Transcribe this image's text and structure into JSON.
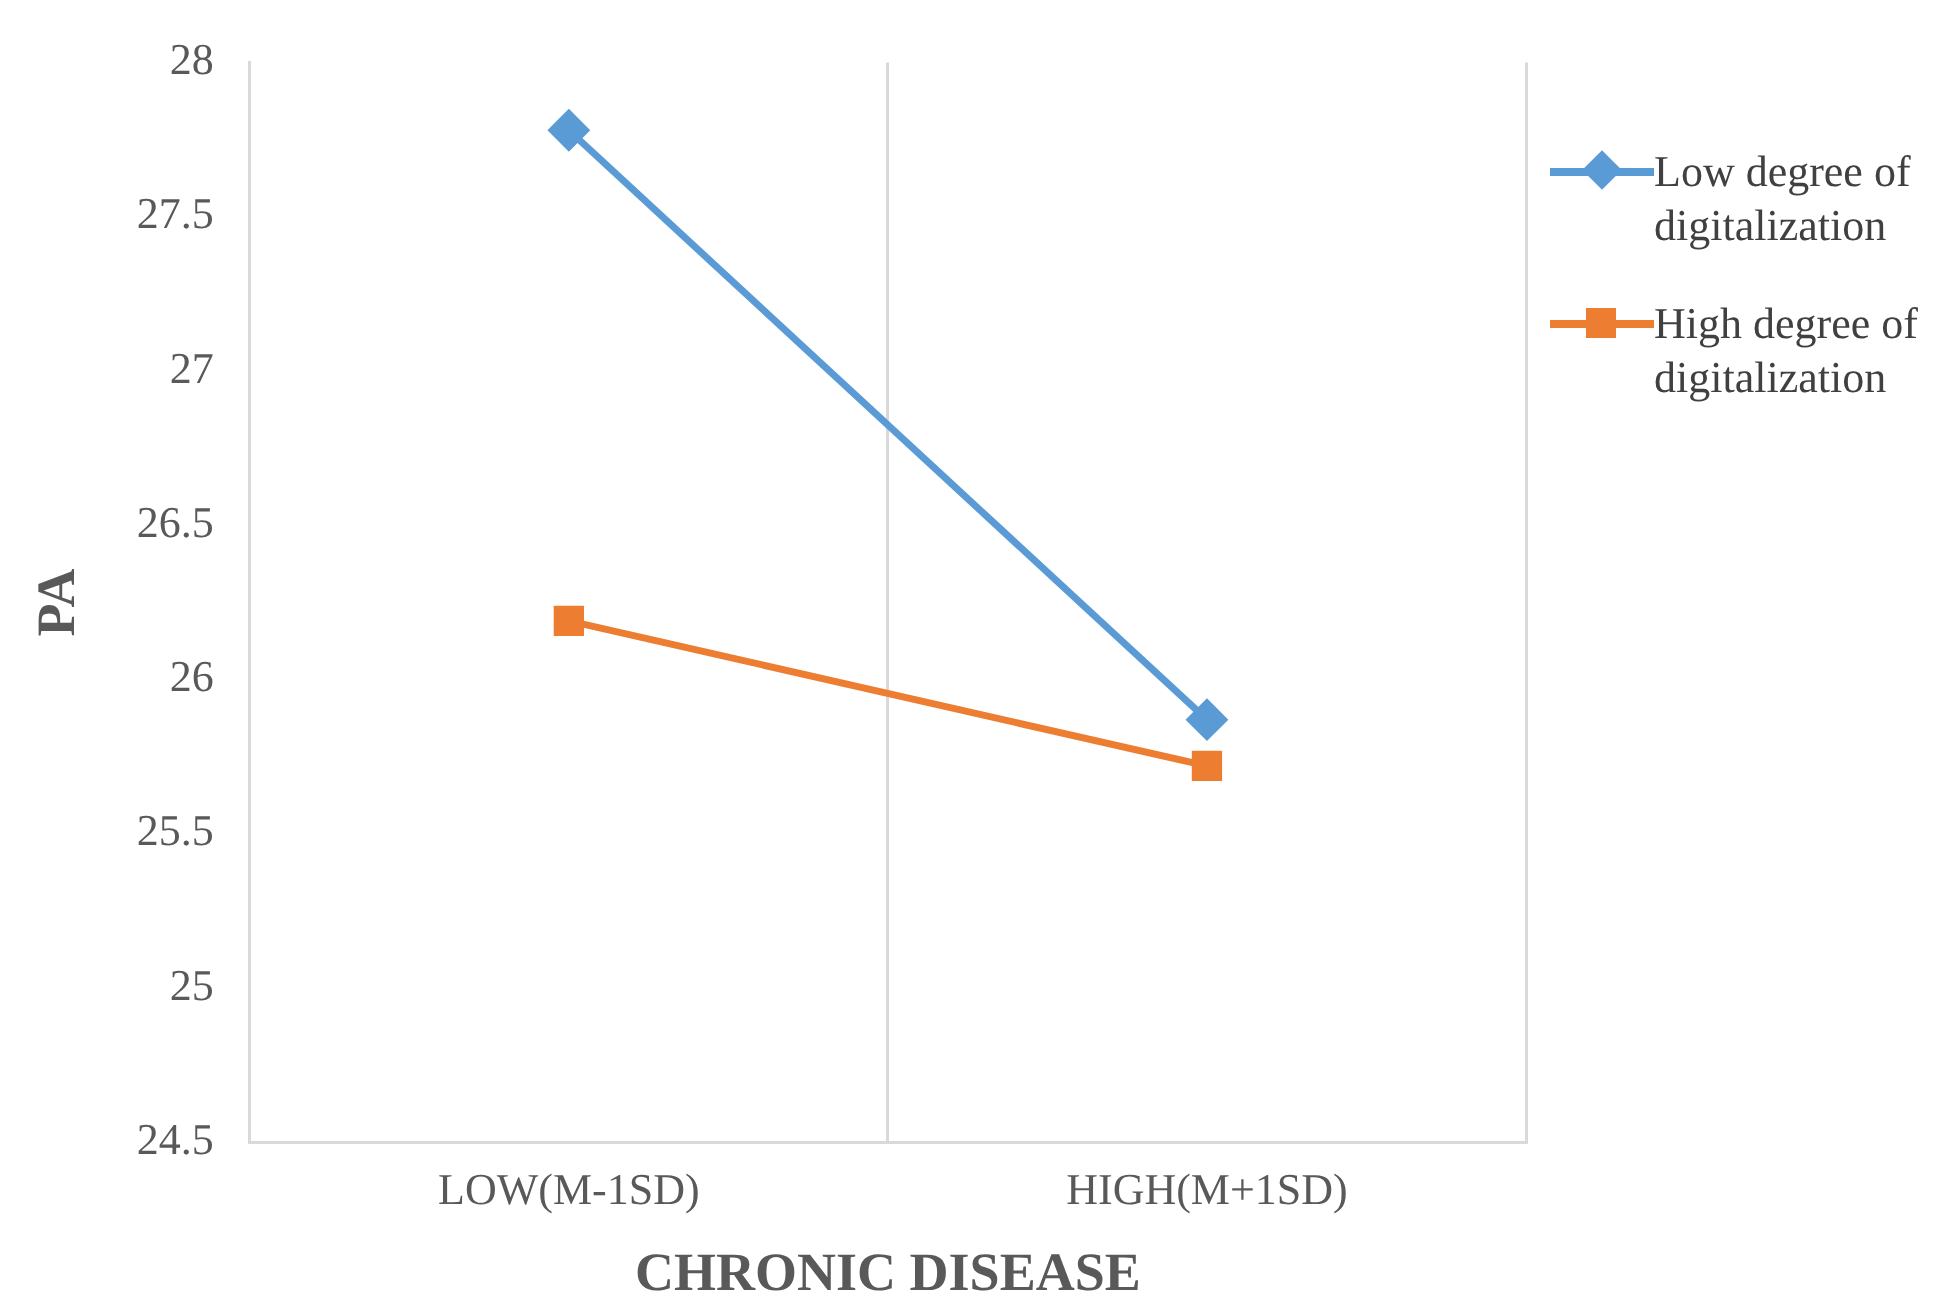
{
  "chart_data": {
    "type": "line",
    "xlabel": "CHRONIC DISEASE",
    "ylabel": "PA",
    "categories": [
      "LOW(M-1SD)",
      "HIGH(M+1SD)"
    ],
    "series": [
      {
        "name": "Low degree of digitalization",
        "color": "#5b9bd5",
        "marker": "diamond",
        "values": [
          27.78,
          25.87
        ]
      },
      {
        "name": "High degree of digitalization",
        "color": "#ed7d31",
        "marker": "square",
        "values": [
          26.19,
          25.72
        ]
      }
    ],
    "ylim": [
      24.5,
      28
    ],
    "yticks": [
      24.5,
      25,
      25.5,
      26,
      26.5,
      27,
      27.5,
      28
    ],
    "grid": "x",
    "legend": "right",
    "line_style": "solid"
  }
}
